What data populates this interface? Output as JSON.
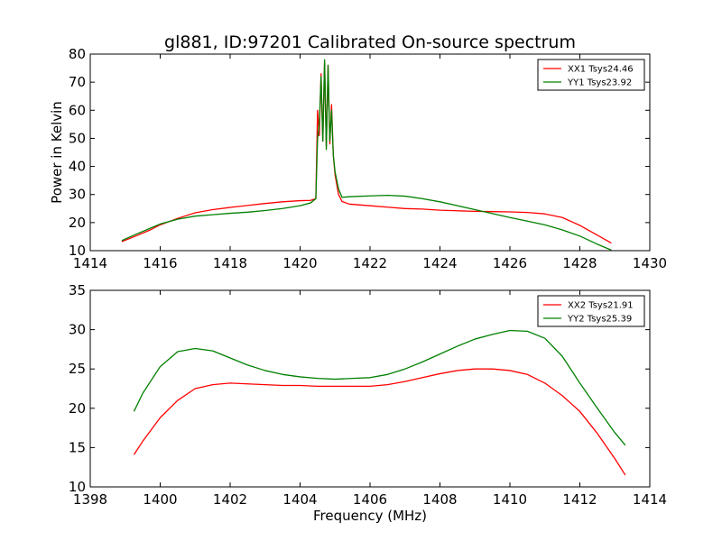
{
  "figure": {
    "title": "gl881, ID:97201 Calibrated On-source spectrum"
  },
  "colors": {
    "xx": "#ff0000",
    "yy": "#008000",
    "axes": "#000000",
    "background": "#ffffff"
  },
  "chart_data": [
    {
      "type": "line",
      "title": "gl881, ID:97201 Calibrated On-source spectrum",
      "xlabel": "",
      "ylabel": "Power in Kelvin",
      "xlim": [
        1414,
        1430
      ],
      "ylim": [
        10,
        80
      ],
      "xticks": [
        1414,
        1416,
        1418,
        1420,
        1422,
        1424,
        1426,
        1428,
        1430
      ],
      "yticks": [
        10,
        20,
        30,
        40,
        50,
        60,
        70,
        80
      ],
      "grid": false,
      "legend_position": "top-right",
      "series": [
        {
          "name": "XX1 Tsys24.46",
          "color": "#ff0000",
          "x": [
            1414.9,
            1415.3,
            1415.7,
            1416.0,
            1416.5,
            1417.0,
            1417.5,
            1418.0,
            1418.5,
            1419.0,
            1419.5,
            1420.0,
            1420.3,
            1420.45,
            1420.5,
            1420.55,
            1420.6,
            1420.65,
            1420.7,
            1420.75,
            1420.8,
            1420.85,
            1420.9,
            1420.95,
            1421.0,
            1421.1,
            1421.2,
            1421.4,
            1422.0,
            1422.5,
            1423.0,
            1423.5,
            1424.0,
            1424.5,
            1425.0,
            1425.5,
            1426.0,
            1426.5,
            1427.0,
            1427.5,
            1428.0,
            1428.5,
            1428.9
          ],
          "y": [
            13.2,
            15.2,
            17.3,
            19.2,
            21.5,
            23.5,
            24.6,
            25.4,
            26.1,
            26.8,
            27.4,
            27.8,
            27.9,
            28.5,
            60,
            51,
            73,
            49,
            77,
            47,
            76,
            48,
            62,
            44,
            37,
            30,
            27.5,
            26.6,
            26.0,
            25.5,
            25.0,
            24.8,
            24.4,
            24.2,
            24.0,
            23.9,
            23.8,
            23.6,
            23.1,
            21.8,
            19.0,
            15.5,
            12.7
          ]
        },
        {
          "name": "YY1 Tsys23.92",
          "color": "#008000",
          "x": [
            1414.9,
            1415.3,
            1415.7,
            1416.0,
            1416.5,
            1417.0,
            1417.5,
            1418.0,
            1418.5,
            1419.0,
            1419.5,
            1420.0,
            1420.3,
            1420.45,
            1420.5,
            1420.55,
            1420.6,
            1420.65,
            1420.7,
            1420.75,
            1420.8,
            1420.85,
            1420.9,
            1420.95,
            1421.0,
            1421.1,
            1421.2,
            1421.4,
            1422.0,
            1422.5,
            1423.0,
            1423.5,
            1424.0,
            1424.5,
            1425.0,
            1425.5,
            1426.0,
            1426.5,
            1427.0,
            1427.5,
            1428.0,
            1428.5,
            1428.9
          ],
          "y": [
            13.6,
            15.8,
            17.9,
            19.5,
            21.2,
            22.3,
            22.8,
            23.3,
            23.7,
            24.3,
            25.0,
            26.0,
            27.0,
            28.5,
            50,
            55,
            72,
            49,
            78,
            46,
            76,
            49,
            60,
            44,
            38,
            32,
            29.0,
            29.2,
            29.5,
            29.7,
            29.4,
            28.5,
            27.4,
            26.0,
            24.6,
            23.2,
            21.8,
            20.5,
            19.2,
            17.4,
            15.2,
            12.3,
            10.2
          ]
        }
      ]
    },
    {
      "type": "line",
      "title": "",
      "xlabel": "Frequency (MHz)",
      "ylabel": "",
      "xlim": [
        1398,
        1414
      ],
      "ylim": [
        10,
        35
      ],
      "xticks": [
        1398,
        1400,
        1402,
        1404,
        1406,
        1408,
        1410,
        1412,
        1414
      ],
      "yticks": [
        10,
        15,
        20,
        25,
        30,
        35
      ],
      "grid": false,
      "legend_position": "top-right",
      "series": [
        {
          "name": "XX2 Tsys21.91",
          "color": "#ff0000",
          "x": [
            1399.25,
            1399.5,
            1400.0,
            1400.5,
            1401.0,
            1401.5,
            1402.0,
            1402.5,
            1403.0,
            1403.5,
            1404.0,
            1404.5,
            1405.0,
            1405.5,
            1406.0,
            1406.5,
            1407.0,
            1407.5,
            1408.0,
            1408.5,
            1409.0,
            1409.5,
            1410.0,
            1410.5,
            1411.0,
            1411.5,
            1412.0,
            1412.5,
            1413.0,
            1413.3
          ],
          "y": [
            14.1,
            15.8,
            18.8,
            21.0,
            22.5,
            23.0,
            23.2,
            23.1,
            23.0,
            22.9,
            22.9,
            22.8,
            22.8,
            22.8,
            22.8,
            23.0,
            23.4,
            23.9,
            24.4,
            24.8,
            25.0,
            25.0,
            24.8,
            24.3,
            23.2,
            21.6,
            19.6,
            16.8,
            13.6,
            11.5
          ]
        },
        {
          "name": "YY2 Tsys25.39",
          "color": "#008000",
          "x": [
            1399.25,
            1399.5,
            1400.0,
            1400.5,
            1401.0,
            1401.5,
            1402.0,
            1402.5,
            1403.0,
            1403.5,
            1404.0,
            1404.5,
            1405.0,
            1405.5,
            1406.0,
            1406.5,
            1407.0,
            1407.5,
            1408.0,
            1408.5,
            1409.0,
            1409.5,
            1410.0,
            1410.5,
            1411.0,
            1411.5,
            1412.0,
            1412.5,
            1413.0,
            1413.3
          ],
          "y": [
            19.6,
            21.9,
            25.3,
            27.2,
            27.6,
            27.3,
            26.4,
            25.5,
            24.8,
            24.3,
            24.0,
            23.8,
            23.7,
            23.8,
            23.9,
            24.3,
            25.0,
            25.9,
            26.9,
            27.9,
            28.8,
            29.4,
            29.9,
            29.8,
            28.9,
            26.6,
            23.2,
            20.0,
            16.9,
            15.3
          ]
        }
      ]
    }
  ]
}
